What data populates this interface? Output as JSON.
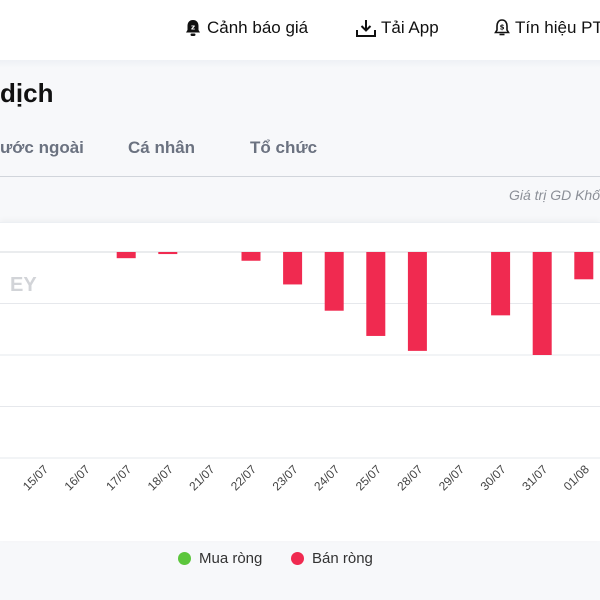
{
  "topnav": {
    "price_alert": "Cảnh báo giá",
    "download_app": "Tải App",
    "signals": "Tín hiệu PT"
  },
  "page": {
    "title": "dịch"
  },
  "tabs": [
    {
      "label": "ước ngoài"
    },
    {
      "label": "Cá nhân"
    },
    {
      "label": "Tổ chức"
    }
  ],
  "unit_note": "Giá trị GD Khố",
  "watermark": "EY",
  "legend": {
    "buy": {
      "label": "Mua ròng",
      "color": "#5cc63c"
    },
    "sell": {
      "label": "Bán ròng",
      "color": "#f02a50"
    }
  },
  "chart_data": {
    "type": "bar",
    "categories": [
      "15/07",
      "16/07",
      "17/07",
      "18/07",
      "21/07",
      "22/07",
      "23/07",
      "24/07",
      "25/07",
      "28/07",
      "29/07",
      "30/07",
      "31/07",
      "01/08"
    ],
    "series": [
      {
        "name": "Bán ròng",
        "values": [
          0,
          0,
          -0.12,
          -0.04,
          0,
          -0.17,
          -0.63,
          -1.14,
          -1.63,
          -1.92,
          0,
          -1.23,
          -2.0,
          -0.53
        ]
      }
    ],
    "ylim": [
      -4,
      0
    ],
    "grid": true
  }
}
